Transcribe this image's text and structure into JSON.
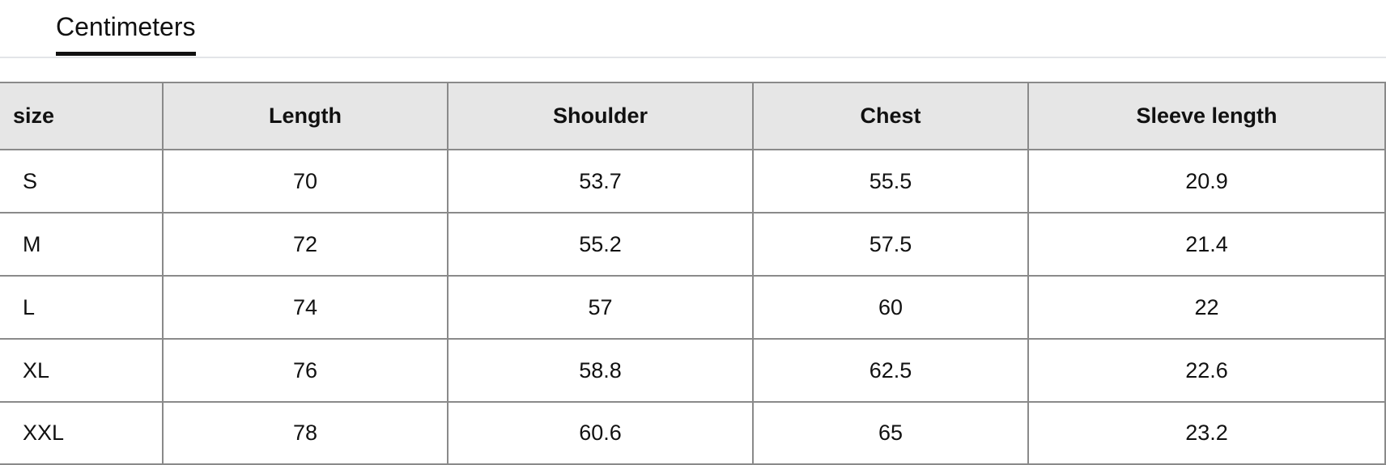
{
  "tabs": [
    {
      "label": "Centimeters",
      "active": true
    }
  ],
  "table": {
    "headers": [
      "size",
      "Length",
      "Shoulder",
      "Chest",
      "Sleeve length"
    ],
    "rows": [
      [
        "S",
        "70",
        "53.7",
        "55.5",
        "20.9"
      ],
      [
        "M",
        "72",
        "55.2",
        "57.5",
        "21.4"
      ],
      [
        "L",
        "74",
        "57",
        "60",
        "22"
      ],
      [
        "XL",
        "76",
        "58.8",
        "62.5",
        "22.6"
      ],
      [
        "XXL",
        "78",
        "60.6",
        "65",
        "23.2"
      ]
    ]
  }
}
